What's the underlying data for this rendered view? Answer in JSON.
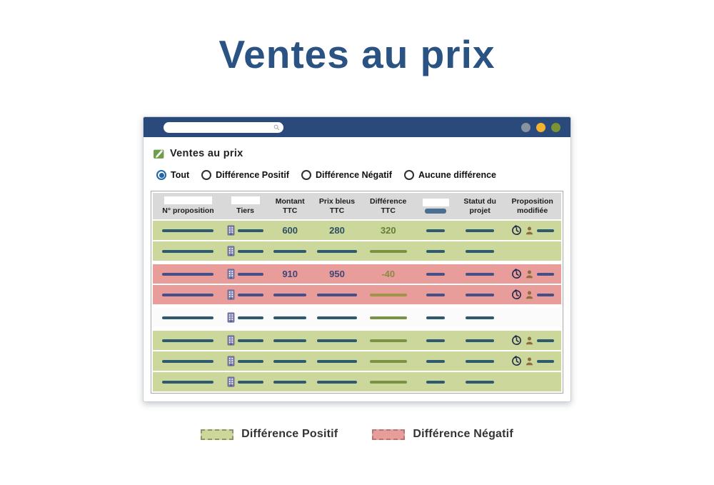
{
  "page": {
    "title": "Ventes au prix"
  },
  "browser": {
    "search_value": "",
    "controls": [
      {
        "name": "minimize",
        "color": "#8893a0"
      },
      {
        "name": "maximize",
        "color": "#f2b42f"
      },
      {
        "name": "close",
        "color": "#7d9232"
      }
    ]
  },
  "app": {
    "title": "Ventes au prix",
    "filters": [
      {
        "label": "Tout",
        "selected": true
      },
      {
        "label": "Différence Positif",
        "selected": false
      },
      {
        "label": "Différence Négatif",
        "selected": false
      },
      {
        "label": "Aucune différence",
        "selected": false
      }
    ],
    "table": {
      "columns": [
        {
          "label": "N° proposition",
          "filter_box": true,
          "header_dash": false
        },
        {
          "label": "Tiers",
          "filter_box": true,
          "header_dash": false
        },
        {
          "label": "Montant TTC",
          "filter_box": false,
          "header_dash": false
        },
        {
          "label": "Prix bleus TTC",
          "filter_box": false,
          "header_dash": false
        },
        {
          "label": "Différence TTC",
          "filter_box": false,
          "header_dash": false
        },
        {
          "label": "",
          "filter_box": true,
          "header_dash": true
        },
        {
          "label": "Statut du projet",
          "filter_box": false,
          "header_dash": false
        },
        {
          "label": "Proposition modifiée",
          "filter_box": false,
          "header_dash": false
        }
      ],
      "rows": [
        {
          "type": "positive",
          "montant": "600",
          "prix_bleus": "280",
          "difference": "320",
          "modified": true
        },
        {
          "type": "positive",
          "montant": "",
          "prix_bleus": "",
          "difference": "",
          "modified": false
        },
        {
          "type": "negative",
          "montant": "910",
          "prix_bleus": "950",
          "difference": "-40",
          "modified": true
        },
        {
          "type": "negative",
          "montant": "",
          "prix_bleus": "",
          "difference": "",
          "modified": true
        },
        {
          "type": "none",
          "montant": "",
          "prix_bleus": "",
          "difference": "",
          "modified": false
        },
        {
          "type": "positive",
          "montant": "",
          "prix_bleus": "",
          "difference": "",
          "modified": true
        },
        {
          "type": "positive",
          "montant": "",
          "prix_bleus": "",
          "difference": "",
          "modified": true
        },
        {
          "type": "positive",
          "montant": "",
          "prix_bleus": "",
          "difference": "",
          "modified": false
        }
      ]
    }
  },
  "legend": {
    "items": [
      {
        "label": "Différence Positif",
        "color": "#ccd79b",
        "border_color": "#8f9464"
      },
      {
        "label": "Différence Négatif",
        "color": "#e89d9b",
        "border_color": "#b27676"
      }
    ]
  },
  "colors": {
    "title_blue": "#2a5383",
    "browser_bar_blue": "#2a4a7c",
    "row_positive": "#ccd79b",
    "row_negative": "#e89d9b",
    "dash_teal": "#2d5a6e",
    "dash_navy": "#474f88",
    "diff_green": "#7a9342",
    "diff_olive": "#9c9747",
    "selected_radio_blue": "#2465a8"
  }
}
